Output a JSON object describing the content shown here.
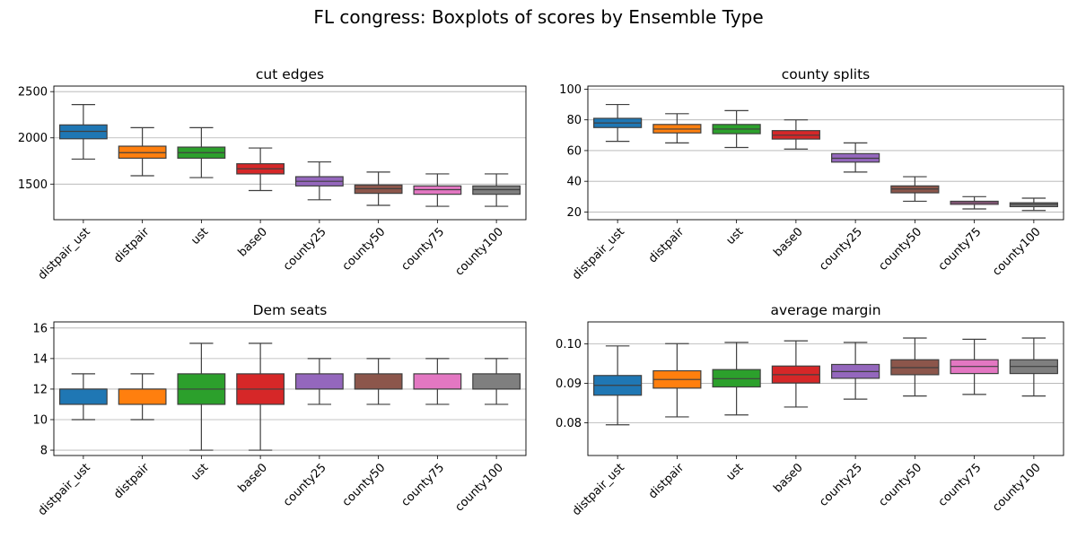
{
  "figure": {
    "suptitle": "FL congress: Boxplots of scores by Ensemble Type"
  },
  "colors": [
    "#1f77b4",
    "#ff7f0e",
    "#2ca02c",
    "#d62728",
    "#9467bd",
    "#8c564b",
    "#e377c2",
    "#7f7f7f"
  ],
  "chart_data": [
    {
      "type": "box",
      "title": "cut edges",
      "categories": [
        "distpair_ust",
        "distpair",
        "ust",
        "base0",
        "county25",
        "county50",
        "county75",
        "county100"
      ],
      "ylim": [
        1115,
        2560
      ],
      "yticks": [
        1500,
        2000,
        2500
      ],
      "grid": "y",
      "boxes": [
        {
          "whislo": 1770,
          "q1": 1990,
          "med": 2070,
          "q3": 2140,
          "whishi": 2360
        },
        {
          "whislo": 1590,
          "q1": 1780,
          "med": 1840,
          "q3": 1910,
          "whishi": 2110
        },
        {
          "whislo": 1570,
          "q1": 1780,
          "med": 1840,
          "q3": 1900,
          "whishi": 2110
        },
        {
          "whislo": 1430,
          "q1": 1610,
          "med": 1665,
          "q3": 1720,
          "whishi": 1890
        },
        {
          "whislo": 1330,
          "q1": 1480,
          "med": 1530,
          "q3": 1580,
          "whishi": 1740
        },
        {
          "whislo": 1270,
          "q1": 1400,
          "med": 1450,
          "q3": 1490,
          "whishi": 1630
        },
        {
          "whislo": 1260,
          "q1": 1390,
          "med": 1440,
          "q3": 1480,
          "whishi": 1610
        },
        {
          "whislo": 1260,
          "q1": 1390,
          "med": 1440,
          "q3": 1480,
          "whishi": 1610
        }
      ]
    },
    {
      "type": "box",
      "title": "county splits",
      "categories": [
        "distpair_ust",
        "distpair",
        "ust",
        "base0",
        "county25",
        "county50",
        "county75",
        "county100"
      ],
      "ylim": [
        15,
        102
      ],
      "yticks": [
        20,
        40,
        60,
        80,
        100
      ],
      "grid": "y",
      "boxes": [
        {
          "whislo": 66,
          "q1": 75,
          "med": 78,
          "q3": 81,
          "whishi": 90
        },
        {
          "whislo": 65,
          "q1": 71.5,
          "med": 74,
          "q3": 77,
          "whishi": 84
        },
        {
          "whislo": 62,
          "q1": 71,
          "med": 74,
          "q3": 77,
          "whishi": 86
        },
        {
          "whislo": 61,
          "q1": 67.5,
          "med": 70,
          "q3": 73,
          "whishi": 80
        },
        {
          "whislo": 46,
          "q1": 52.5,
          "med": 55,
          "q3": 58,
          "whishi": 65
        },
        {
          "whislo": 27,
          "q1": 32.5,
          "med": 35,
          "q3": 37,
          "whishi": 43
        },
        {
          "whislo": 22,
          "q1": 25,
          "med": 26,
          "q3": 27,
          "whishi": 30
        },
        {
          "whislo": 21,
          "q1": 23.5,
          "med": 25,
          "q3": 26,
          "whishi": 29
        }
      ]
    },
    {
      "type": "box",
      "title": "Dem seats",
      "categories": [
        "distpair_ust",
        "distpair",
        "ust",
        "base0",
        "county25",
        "county50",
        "county75",
        "county100"
      ],
      "ylim": [
        7.65,
        16.4
      ],
      "yticks": [
        8,
        10,
        12,
        14,
        16
      ],
      "grid": "y",
      "boxes": [
        {
          "whislo": 10,
          "q1": 11,
          "med": 12,
          "q3": 12,
          "whishi": 13
        },
        {
          "whislo": 10,
          "q1": 11,
          "med": 12,
          "q3": 12,
          "whishi": 13
        },
        {
          "whislo": 8,
          "q1": 11,
          "med": 12,
          "q3": 13,
          "whishi": 15
        },
        {
          "whislo": 8,
          "q1": 11,
          "med": 12,
          "q3": 13,
          "whishi": 15
        },
        {
          "whislo": 11,
          "q1": 12,
          "med": 12,
          "q3": 13,
          "whishi": 14
        },
        {
          "whislo": 11,
          "q1": 12,
          "med": 12,
          "q3": 13,
          "whishi": 14
        },
        {
          "whislo": 11,
          "q1": 12,
          "med": 12,
          "q3": 13,
          "whishi": 14
        },
        {
          "whislo": 11,
          "q1": 12,
          "med": 12,
          "q3": 13,
          "whishi": 14
        }
      ]
    },
    {
      "type": "box",
      "title": "average margin",
      "categories": [
        "distpair_ust",
        "distpair",
        "ust",
        "base0",
        "county25",
        "county50",
        "county75",
        "county100"
      ],
      "ylim": [
        0.0717,
        0.1056
      ],
      "yticks": [
        0.08,
        0.09,
        0.1
      ],
      "ytick_labels": [
        "0.08",
        "0.09",
        "0.10"
      ],
      "grid": "y",
      "boxes": [
        {
          "whislo": 0.0795,
          "q1": 0.087,
          "med": 0.0895,
          "q3": 0.092,
          "whishi": 0.0995
        },
        {
          "whislo": 0.0815,
          "q1": 0.0888,
          "med": 0.091,
          "q3": 0.0932,
          "whishi": 0.1001
        },
        {
          "whislo": 0.082,
          "q1": 0.0891,
          "med": 0.0912,
          "q3": 0.0935,
          "whishi": 0.1004
        },
        {
          "whislo": 0.084,
          "q1": 0.0901,
          "med": 0.0922,
          "q3": 0.0944,
          "whishi": 0.1008
        },
        {
          "whislo": 0.086,
          "q1": 0.0913,
          "med": 0.093,
          "q3": 0.0948,
          "whishi": 0.1004
        },
        {
          "whislo": 0.0868,
          "q1": 0.0922,
          "med": 0.094,
          "q3": 0.096,
          "whishi": 0.1015
        },
        {
          "whislo": 0.0872,
          "q1": 0.0925,
          "med": 0.0943,
          "q3": 0.096,
          "whishi": 0.1012
        },
        {
          "whislo": 0.0868,
          "q1": 0.0925,
          "med": 0.0943,
          "q3": 0.096,
          "whishi": 0.1015
        }
      ]
    }
  ]
}
